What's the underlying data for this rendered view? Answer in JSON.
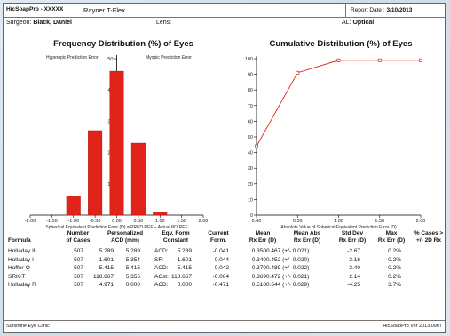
{
  "header": {
    "program": "HicSoapPro - XXXXX",
    "lens_name": "Rayner T-Flex",
    "report_date_label": "Report Date :",
    "report_date": "3/10/2013"
  },
  "info": {
    "surgeon_label": "Surgeon:",
    "surgeon": "Black, Daniel",
    "lens_label": "Lens:",
    "al_label": "AL:",
    "al": "Optical"
  },
  "freq_chart": {
    "title": "Frequency Distribution (%) of Eyes",
    "hyperopic_label": "Hyperopic Prediction Error",
    "myopic_label": "Myopic Prediction Error",
    "xlabel": "Spherical Equivalent Prediction Error (D) = PRED REF – Actual PO REF"
  },
  "cum_chart": {
    "title": "Cumulative Distribution (%) of Eyes",
    "xlabel": "Absolute Value of Spherical Equivalent Prediction Error (D)"
  },
  "chart_data": [
    {
      "type": "bar",
      "title": "Frequency Distribution (%) of Eyes",
      "categories": [
        "-2.00",
        "-1.50",
        "-1.00",
        "-0.50",
        "0.00",
        "0.50",
        "1.00",
        "1.50",
        "2.00"
      ],
      "x": [
        -2.0,
        -1.5,
        -1.0,
        -0.5,
        0.0,
        0.5,
        1.0,
        1.5,
        2.0
      ],
      "values": [
        0,
        0,
        6,
        27,
        46,
        23,
        1,
        0,
        0
      ],
      "ylim": [
        0,
        50
      ],
      "yticks": [
        "10",
        "20",
        "30",
        "40",
        "50"
      ],
      "xlabel": "Spherical Equivalent Prediction Error (D) = PRED REF – Actual PO REF",
      "grid": false
    },
    {
      "type": "line",
      "title": "Cumulative Distribution (%) of Eyes",
      "x": [
        0.0,
        0.5,
        1.0,
        1.5,
        2.0
      ],
      "values": [
        44,
        91,
        99,
        99,
        99
      ],
      "xticks": [
        "0.00",
        "0.50",
        "1.00",
        "1.50",
        "2.00"
      ],
      "yticks": [
        "0",
        "10",
        "20",
        "30",
        "40",
        "50",
        "60",
        "70",
        "80",
        "90",
        "100"
      ],
      "ylim": [
        0,
        100
      ],
      "xlabel": "Absolute Value of Spherical Equivalent Prediction Error (D)",
      "grid": false
    }
  ],
  "table": {
    "headers": {
      "formula": "Formula",
      "cases": "Number\nof Cases",
      "acd": "Personalized\nACD (mm)",
      "constant": "Eqv. Form\nConstant",
      "current": "Current\nForm.",
      "mean": "Mean\nRx Err (D)",
      "meanabs": "Mean Abs\nRx Err (D)",
      "std": "Std Dev\nRx Err (D)",
      "max": "Max\nRx Err (D)",
      "pct": "% Cases >\n+/- 2D Rx"
    },
    "rows": [
      {
        "formula": "Holladay II",
        "cases": "507",
        "acd1": "5.289",
        "acd2": "5.289",
        "const_label": "ACD:",
        "const": "5.289",
        "current": "-0.041",
        "mean": "0.350",
        "meanabs": "0.467 (+/- 0.021)",
        "std": "-2.67",
        "max": "0.2%"
      },
      {
        "formula": "Holladay I",
        "cases": "507",
        "acd1": "1.601",
        "acd2": "5.354",
        "const_label": "SF:",
        "const": "1.601",
        "current": "-0.044",
        "mean": "0.340",
        "meanabs": "0.452 (+/- 0.020)",
        "std": "-2.16",
        "max": "0.2%"
      },
      {
        "formula": "Hoffer-Q",
        "cases": "507",
        "acd1": "5.415",
        "acd2": "5.415",
        "const_label": "ACD:",
        "const": "5.415",
        "current": "-0.042",
        "mean": "0.370",
        "meanabs": "0.489 (+/- 0.022)",
        "std": "-2.40",
        "max": "0.2%"
      },
      {
        "formula": "SRK-T",
        "cases": "507",
        "acd1": "118.667",
        "acd2": "5.355",
        "const_label": "ACst:",
        "const": "118.667",
        "current": "-0.004",
        "mean": "0.369",
        "meanabs": "0.472 (+/- 0.021)",
        "std": "2.14",
        "max": "0.2%"
      },
      {
        "formula": "Holladay R",
        "cases": "507",
        "acd1": "4.971",
        "acd2": "0.000",
        "const_label": "ACD:",
        "const": "0.000",
        "current": "-0.471",
        "mean": "0.518",
        "meanabs": "0.644 (+/- 0.029)",
        "std": "-4.25",
        "max": "3.7%"
      }
    ]
  },
  "footer": {
    "clinic": "Sunshine Eye Clinic",
    "version": "HicSoapPro Ver 2013.0907"
  }
}
